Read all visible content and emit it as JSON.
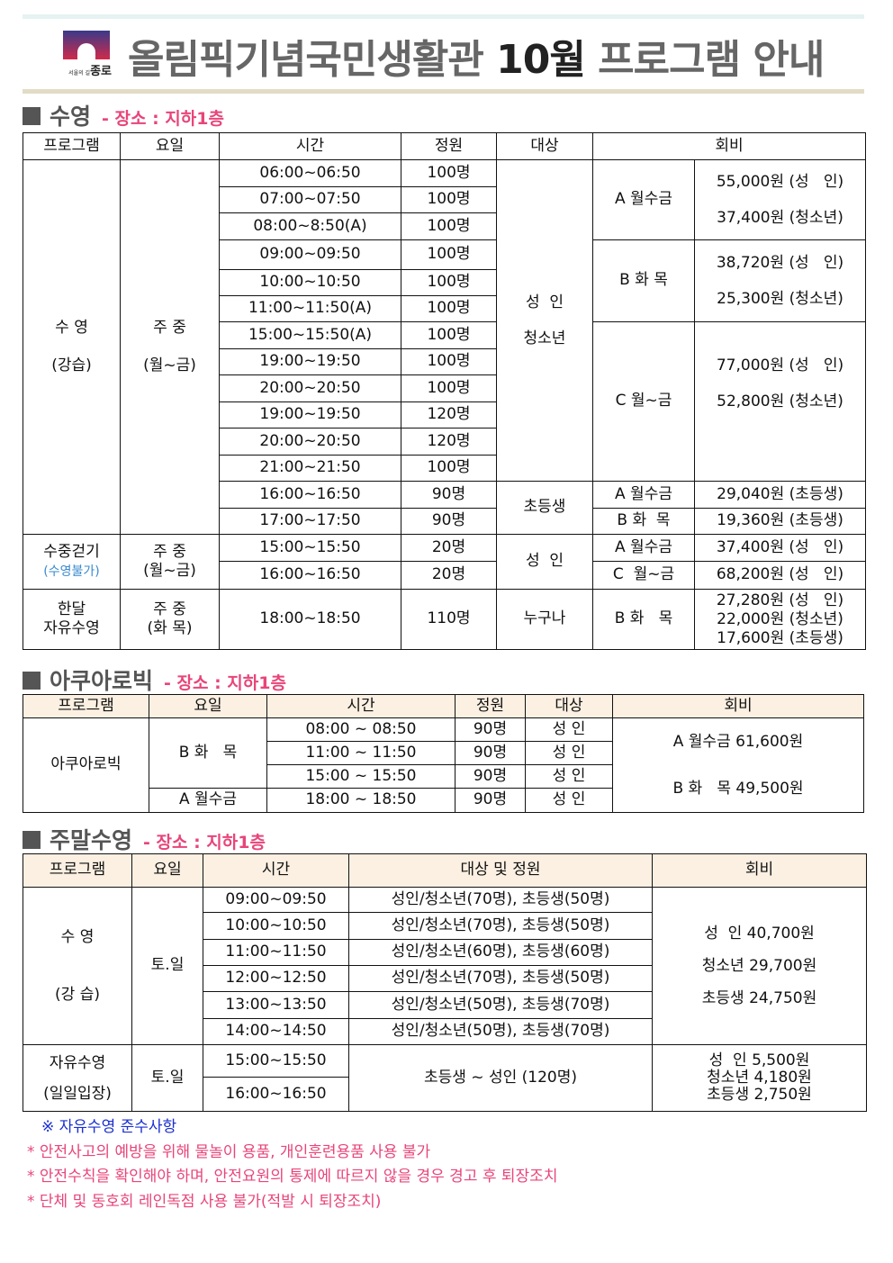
{
  "header": {
    "logo_text": "서울의 길 종로",
    "title_prefix": "올림픽기념국민생활관 ",
    "title_month": "10월",
    "title_suffix": " 프로그램 안내"
  },
  "swim": {
    "title": "수영",
    "location": "- 장소 : 지하1층",
    "headers": [
      "프로그램",
      "요일",
      "시간",
      "정원",
      "대상",
      "회비"
    ],
    "lesson": {
      "name": "수 영",
      "name2": "(강습)",
      "days": "주 중",
      "days2": "(월~금)",
      "times": [
        "06:00~06:50",
        "07:00~07:50",
        "08:00~8:50(A)",
        "09:00~09:50",
        "10:00~10:50",
        "11:00~11:50(A)",
        "15:00~15:50(A)",
        "19:00~19:50",
        "20:00~20:50",
        "19:00~19:50",
        "20:00~20:50",
        "21:00~21:50",
        "16:00~16:50",
        "17:00~17:50"
      ],
      "capacity": [
        "100명",
        "100명",
        "100명",
        "100명",
        "100명",
        "100명",
        "100명",
        "100명",
        "100명",
        "120명",
        "120명",
        "100명",
        "90명",
        "90명"
      ],
      "target1": "성  인",
      "target2": "청소년",
      "target_child": "초등생",
      "plans": [
        {
          "label": "A 월수금",
          "fee1": "55,000원 (성   인)",
          "fee2": "37,400원 (청소년)"
        },
        {
          "label": "B 화 목",
          "fee1": "38,720원 (성   인)",
          "fee2": "25,300원 (청소년)"
        },
        {
          "label": "C 월~금",
          "fee1": "77,000원 (성   인)",
          "fee2": "52,800원 (청소년)"
        }
      ],
      "child_plans": [
        {
          "label": "A 월수금",
          "fee": "29,040원 (초등생)"
        },
        {
          "label": "B 화  목",
          "fee": "19,360원 (초등생)"
        }
      ]
    },
    "walk": {
      "name": "수중걷기",
      "note": "(수영불가)",
      "days": "주 중",
      "days2": "(월~금)",
      "times": [
        "15:00~15:50",
        "16:00~16:50"
      ],
      "capacity": [
        "20명",
        "20명"
      ],
      "target": "성  인",
      "plans": [
        {
          "label": "A 월수금",
          "fee": "37,400원 (성   인)"
        },
        {
          "label": "C  월~금",
          "fee": "68,200원 (성   인)"
        }
      ]
    },
    "monthly": {
      "name": "한달",
      "name2": "자유수영",
      "days": "주 중",
      "days2": "(화 목)",
      "time": "18:00~18:50",
      "capacity": "110명",
      "target": "누구나",
      "plan": "B 화   목",
      "fees": [
        "27,280원 (성   인)",
        "22,000원 (청소년)",
        "17,600원 (초등생)"
      ]
    }
  },
  "aqua": {
    "title": "아쿠아로빅",
    "location": "- 장소 : 지하1층",
    "headers": [
      "프로그램",
      "요일",
      "시간",
      "정원",
      "대상",
      "회비"
    ],
    "name": "아쿠아로빅",
    "days_b": "B 화   목",
    "days_a": "A 월수금",
    "times": [
      "08:00 ~ 08:50",
      "11:00 ~ 11:50",
      "15:00 ~ 15:50",
      "18:00 ~ 18:50"
    ],
    "capacity": [
      "90명",
      "90명",
      "90명",
      "90명"
    ],
    "targets": [
      "성 인",
      "성 인",
      "성 인",
      "성 인"
    ],
    "fees": [
      "A 월수금 61,600원",
      "B 화   목 49,500원"
    ]
  },
  "weekend": {
    "title": "주말수영",
    "location": "- 장소 : 지하1층",
    "headers": [
      "프로그램",
      "요일",
      "시간",
      "대상 및 정원",
      "회비"
    ],
    "lesson": {
      "name": "수 영",
      "name2": "(강 습)",
      "days": "토.일",
      "times": [
        "09:00~09:50",
        "10:00~10:50",
        "11:00~11:50",
        "12:00~12:50",
        "13:00~13:50",
        "14:00~14:50"
      ],
      "targets": [
        "성인/청소년(70명), 초등생(50명)",
        "성인/청소년(70명), 초등생(50명)",
        "성인/청소년(60명), 초등생(60명)",
        "성인/청소년(70명), 초등생(50명)",
        "성인/청소년(50명), 초등생(70명)",
        "성인/청소년(50명), 초등생(70명)"
      ],
      "fees": [
        "성  인 40,700원",
        "청소년 29,700원",
        "초등생 24,750원"
      ]
    },
    "free": {
      "name": "자유수영",
      "name2": "(일일입장)",
      "days": "토.일",
      "times": [
        "15:00~15:50",
        "16:00~16:50"
      ],
      "target": "초등생 ~ 성인 (120명)",
      "fees": [
        "성  인 5,500원",
        "청소년 4,180원",
        "초등생 2,750원"
      ]
    }
  },
  "notes": {
    "heading": "※ 자유수영 준수사항",
    "items": [
      "* 안전사고의 예방을 위해 물놀이 용품, 개인훈련용품 사용 불가",
      "* 안전수칙을 확인해야 하며, 안전요원의 통제에 따르지 않을 경우 경고 후 퇴장조치",
      "* 단체 및 동호회 레인독점 사용 불가(적발 시 퇴장조치)"
    ]
  },
  "colors": {
    "accent_pink": "#e8457a",
    "note_blue": "#1a2fd0",
    "header_beige": "#fbf0e2",
    "title_gray": "#666666"
  }
}
